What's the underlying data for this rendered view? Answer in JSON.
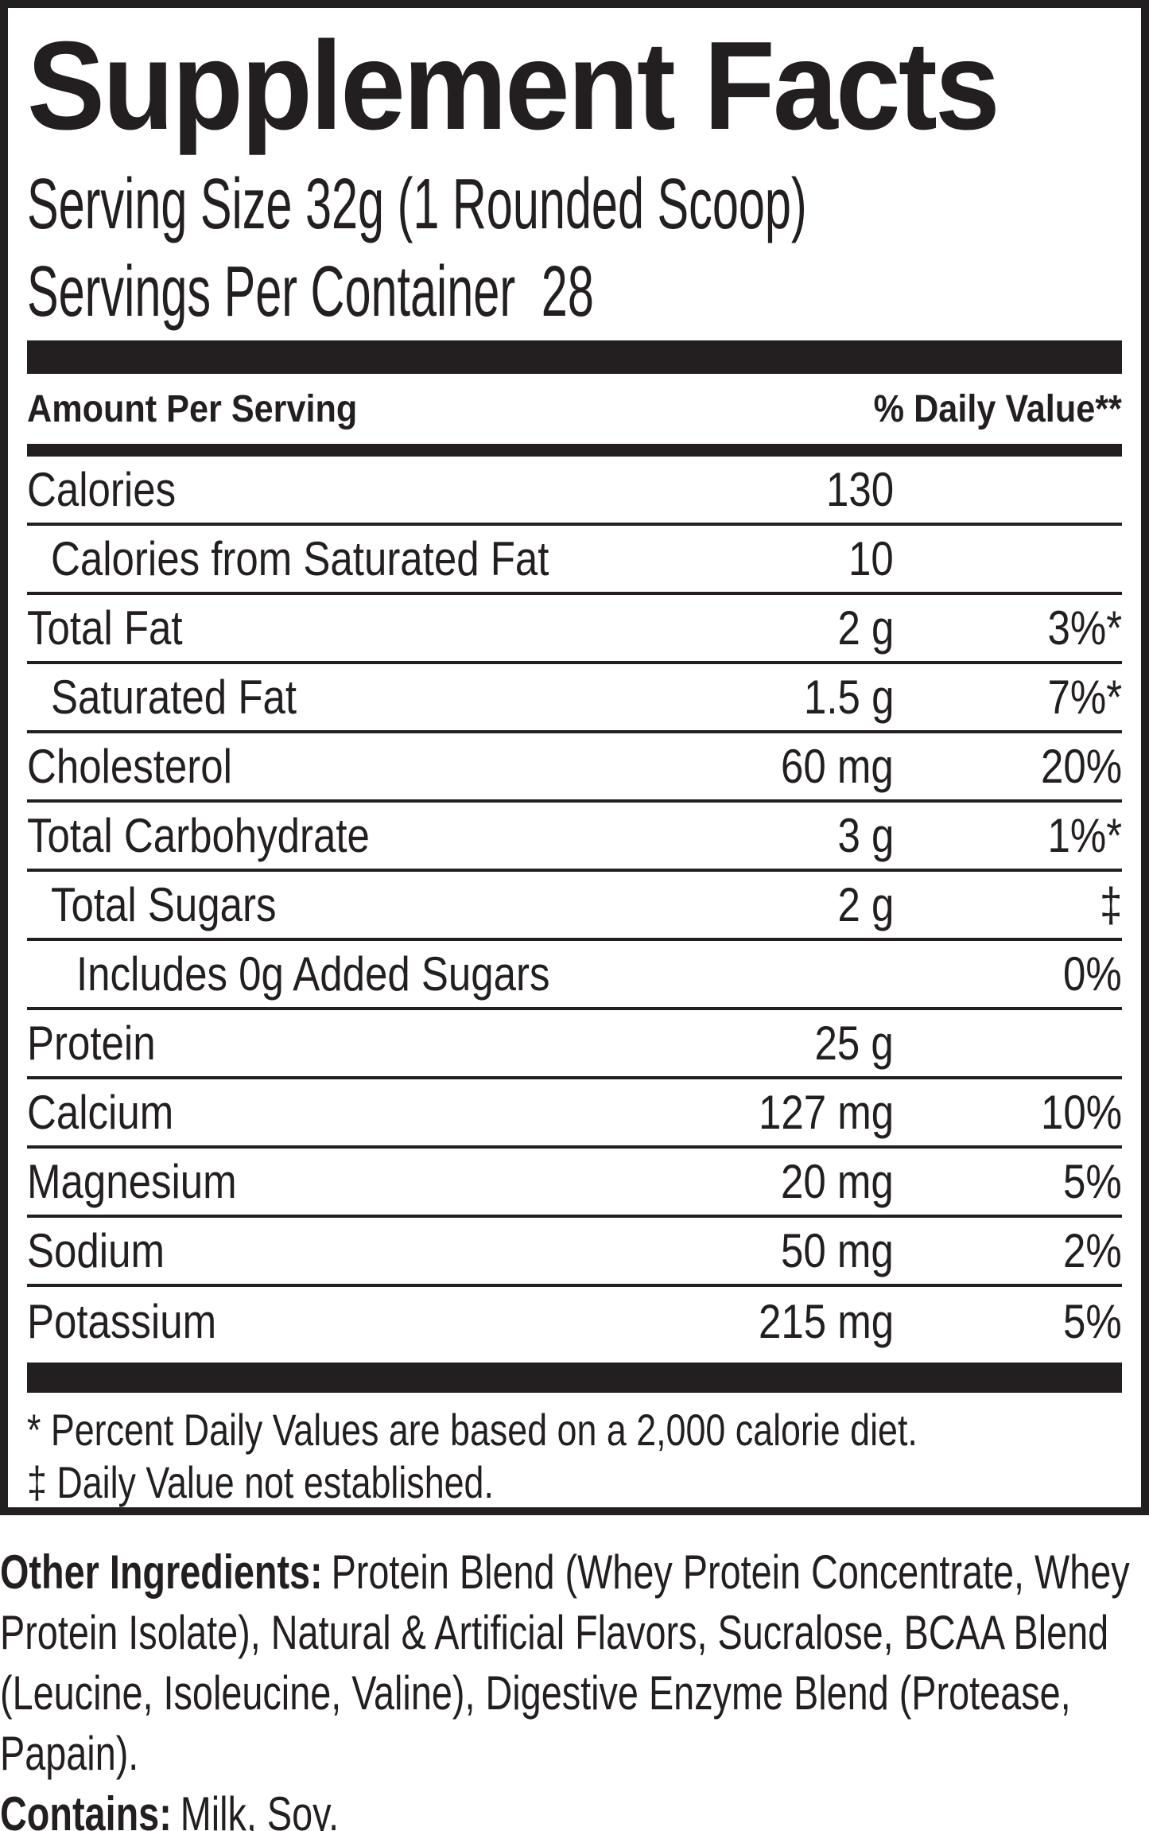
{
  "panel": {
    "title": "Supplement Facts",
    "serving_size": "Serving Size 32g (1 Rounded Scoop)",
    "servings_per_container": {
      "label": "Servings Per Container",
      "value": "28"
    },
    "column_headers": {
      "amount": "Amount Per Serving",
      "daily_value": "% Daily Value**"
    },
    "rows": [
      {
        "name": "Calories",
        "amount": "130",
        "daily_value": "",
        "indent": 0
      },
      {
        "name": "Calories from Saturated Fat",
        "amount": "10",
        "daily_value": "",
        "indent": 1
      },
      {
        "name": "Total Fat",
        "amount": "2 g",
        "daily_value": "3%*",
        "indent": 0
      },
      {
        "name": "Saturated Fat",
        "amount": "1.5 g",
        "daily_value": "7%*",
        "indent": 1
      },
      {
        "name": "Cholesterol",
        "amount": "60 mg",
        "daily_value": "20%",
        "indent": 0
      },
      {
        "name": "Total Carbohydrate",
        "amount": "3 g",
        "daily_value": "1%*",
        "indent": 0
      },
      {
        "name": "Total Sugars",
        "amount": "2 g",
        "daily_value": "‡",
        "indent": 1
      },
      {
        "name": "Includes 0g Added Sugars",
        "amount": "",
        "daily_value": "0%",
        "indent": 2
      },
      {
        "name": "Protein",
        "amount": "25 g",
        "daily_value": "",
        "indent": 0
      },
      {
        "name": "Calcium",
        "amount": "127 mg",
        "daily_value": "10%",
        "indent": 0
      },
      {
        "name": "Magnesium",
        "amount": "20 mg",
        "daily_value": "5%",
        "indent": 0
      },
      {
        "name": "Sodium",
        "amount": "50 mg",
        "daily_value": "2%",
        "indent": 0
      },
      {
        "name": "Potassium",
        "amount": "215 mg",
        "daily_value": "5%",
        "indent": 0
      }
    ],
    "footnotes": [
      "* Percent Daily Values are based on a 2,000 calorie diet.",
      "‡ Daily Value not established."
    ]
  },
  "ingredients": {
    "other_label": "Other Ingredients:",
    "other_text": "Protein Blend (Whey Protein Concentrate, Whey Protein Isolate), Natural & Artificial Flavors, Sucralose, BCAA Blend (Leucine, Isoleucine, Valine), Digestive Enzyme Blend (Protease, Papain).",
    "contains_label": "Contains:",
    "contains_text": "Milk, Soy."
  },
  "colors": {
    "ink": "#231f20",
    "background": "#ffffff"
  }
}
